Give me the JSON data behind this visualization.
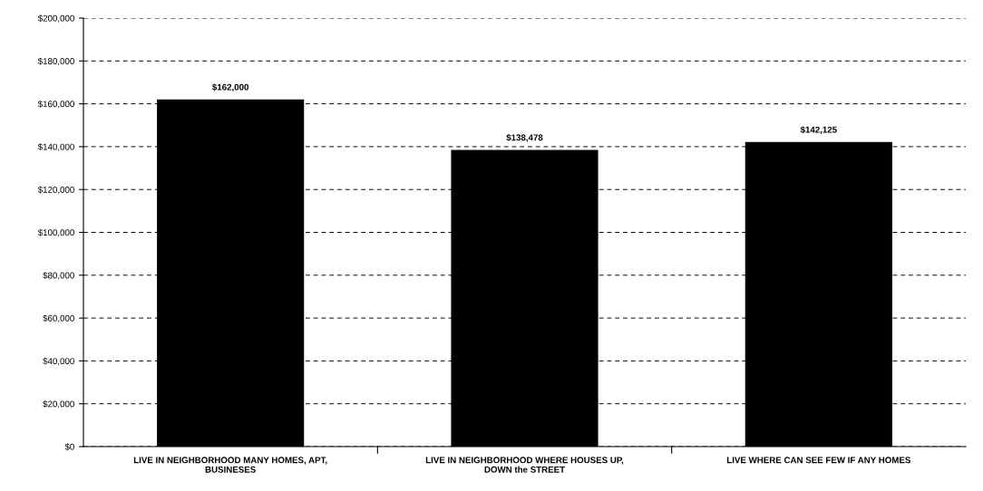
{
  "chart_data": {
    "type": "bar",
    "categories": [
      "LIVE IN NEIGHBORHOOD MANY HOMES, APT, BUSINESES",
      "LIVE IN NEIGHBORHOOD WHERE HOUSES UP, DOWN the STREET",
      "LIVE WHERE CAN SEE FEW IF ANY HOMES"
    ],
    "values": [
      162000,
      138478,
      142125
    ],
    "value_labels": [
      "$162,000",
      "$138,478",
      "$142,125"
    ],
    "color": "#000000",
    "ylim": [
      0,
      200000
    ],
    "yticks": [
      {
        "value": 0,
        "label": "$0"
      },
      {
        "value": 20000,
        "label": "$20,000"
      },
      {
        "value": 40000,
        "label": "$40,000"
      },
      {
        "value": 60000,
        "label": "$60,000"
      },
      {
        "value": 80000,
        "label": "$80,000"
      },
      {
        "value": 100000,
        "label": "$100,000"
      },
      {
        "value": 120000,
        "label": "$120,000"
      },
      {
        "value": 140000,
        "label": "$140,000"
      },
      {
        "value": 160000,
        "label": "$160,000"
      },
      {
        "value": 180000,
        "label": "$180,000"
      },
      {
        "value": 200000,
        "label": "$200,000"
      }
    ],
    "grid": "y",
    "legend": false
  }
}
